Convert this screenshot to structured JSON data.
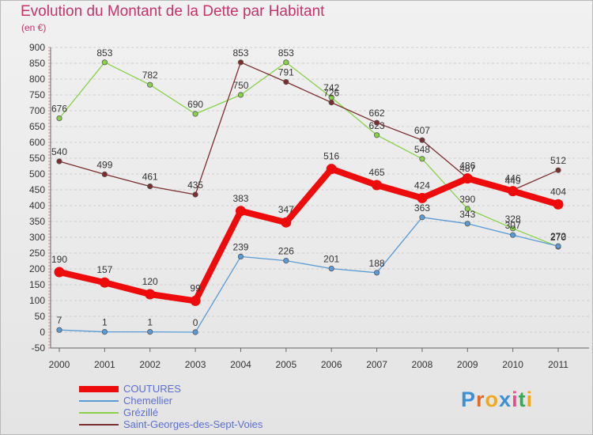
{
  "title": "Evolution du Montant de la Dette par Habitant",
  "subtitle": "(en €)",
  "logo": {
    "text": "Proxiti",
    "letter_colors": [
      "#3b8fd6",
      "#e06b2a",
      "#f2a81c",
      "#3b8fd6",
      "#e84c8a",
      "#39a854",
      "#f2a81c"
    ]
  },
  "chart_data": {
    "type": "line",
    "title": "Evolution du Montant de la Dette par Habitant",
    "subtitle": "(en €)",
    "categories": [
      "2000",
      "2001",
      "2002",
      "2003",
      "2004",
      "2005",
      "2006",
      "2007",
      "2008",
      "2009",
      "2010",
      "2011"
    ],
    "ylim": [
      -50,
      900
    ],
    "yticks": [
      -50,
      0,
      50,
      100,
      150,
      200,
      250,
      300,
      350,
      400,
      450,
      500,
      550,
      600,
      650,
      700,
      750,
      800,
      850,
      900
    ],
    "grid": "horizontal dashed",
    "legend_position": "bottom-left",
    "series": [
      {
        "name": "Grézillé",
        "color": "#8ad14a",
        "values": [
          676,
          853,
          782,
          690,
          750,
          853,
          742,
          623,
          548,
          390,
          328,
          270
        ]
      },
      {
        "name": "Saint-Georges-des-Sept-Voies",
        "color": "#7a2e2e",
        "values": [
          540,
          499,
          461,
          435,
          853,
          791,
          726,
          662,
          607,
          487,
          449,
          512
        ]
      },
      {
        "name": "Chemellier",
        "color": "#5a9bd5",
        "values": [
          7,
          1,
          1,
          0,
          239,
          226,
          201,
          188,
          363,
          343,
          307,
          272
        ]
      },
      {
        "name": "COUTURES",
        "color": "#ee0b0b",
        "values": [
          190,
          157,
          120,
          99,
          383,
          347,
          516,
          465,
          424,
          486,
          446,
          404
        ]
      }
    ],
    "legend_order": [
      "COUTURES",
      "Chemellier",
      "Grézillé",
      "Saint-Georges-des-Sept-Voies"
    ]
  }
}
